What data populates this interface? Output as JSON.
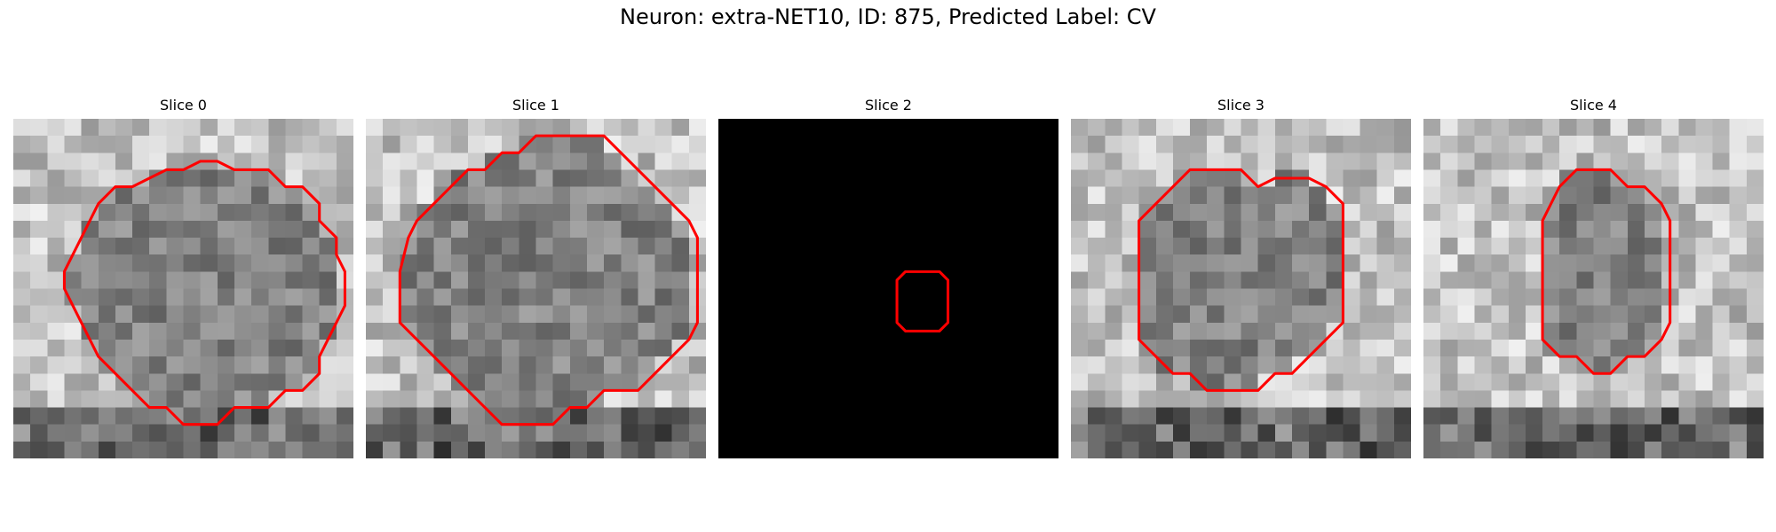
{
  "figure": {
    "title": "Neuron: extra-NET10, ID: 875, Predicted Label: CV"
  },
  "contour_color": "#ff0000",
  "colormap": "gray",
  "slices": [
    {
      "label": "Slice 0",
      "background": "grayscale-noise",
      "contour": [
        [
          13,
          3
        ],
        [
          15,
          3
        ],
        [
          16,
          4
        ],
        [
          17,
          4
        ],
        [
          18,
          5
        ],
        [
          18,
          6
        ],
        [
          19,
          7
        ],
        [
          19,
          8
        ],
        [
          19.5,
          9
        ],
        [
          19.5,
          11
        ],
        [
          19,
          12
        ],
        [
          18.5,
          13
        ],
        [
          18,
          14
        ],
        [
          18,
          15
        ],
        [
          17,
          16
        ],
        [
          16,
          16
        ],
        [
          15,
          17
        ],
        [
          13,
          17
        ],
        [
          12,
          18
        ],
        [
          10,
          18
        ],
        [
          9,
          17
        ],
        [
          8,
          17
        ],
        [
          7,
          16
        ],
        [
          6,
          15
        ],
        [
          5,
          14
        ],
        [
          4.5,
          13
        ],
        [
          4,
          12
        ],
        [
          3.5,
          11
        ],
        [
          3,
          10
        ],
        [
          3,
          9
        ],
        [
          3.5,
          8
        ],
        [
          4,
          7
        ],
        [
          4.5,
          6
        ],
        [
          5,
          5
        ],
        [
          6,
          4
        ],
        [
          7,
          4
        ],
        [
          8,
          3.5
        ],
        [
          9,
          3
        ],
        [
          10,
          3
        ],
        [
          11,
          2.5
        ],
        [
          12,
          2.5
        ]
      ]
    },
    {
      "label": "Slice 1",
      "background": "grayscale-noise",
      "contour": [
        [
          12,
          1
        ],
        [
          14,
          1
        ],
        [
          15,
          2
        ],
        [
          16,
          3
        ],
        [
          17,
          4
        ],
        [
          18,
          5
        ],
        [
          19,
          6
        ],
        [
          19.5,
          7
        ],
        [
          19.5,
          12
        ],
        [
          19,
          13
        ],
        [
          18,
          14
        ],
        [
          17,
          15
        ],
        [
          16,
          16
        ],
        [
          14,
          16
        ],
        [
          13,
          17
        ],
        [
          12,
          17
        ],
        [
          11,
          18
        ],
        [
          8,
          18
        ],
        [
          7,
          17
        ],
        [
          6,
          16
        ],
        [
          5,
          15
        ],
        [
          4,
          14
        ],
        [
          3,
          13
        ],
        [
          2,
          12
        ],
        [
          2,
          9
        ],
        [
          2.5,
          7
        ],
        [
          3,
          6
        ],
        [
          4,
          5
        ],
        [
          5,
          4
        ],
        [
          6,
          3
        ],
        [
          7,
          3
        ],
        [
          8,
          2
        ],
        [
          9,
          2
        ],
        [
          10,
          1
        ],
        [
          11,
          1
        ]
      ]
    },
    {
      "label": "Slice 2",
      "background": "black",
      "contour": [
        [
          11,
          9
        ],
        [
          13,
          9
        ],
        [
          13.5,
          9.5
        ],
        [
          13.5,
          12
        ],
        [
          13,
          12.5
        ],
        [
          11,
          12.5
        ],
        [
          10.5,
          12
        ],
        [
          10.5,
          9.5
        ]
      ]
    },
    {
      "label": "Slice 3",
      "background": "grayscale-noise",
      "contour": [
        [
          8,
          3
        ],
        [
          10,
          3
        ],
        [
          11,
          4
        ],
        [
          12,
          3.5
        ],
        [
          14,
          3.5
        ],
        [
          15,
          4
        ],
        [
          16,
          5
        ],
        [
          16,
          12
        ],
        [
          15,
          13
        ],
        [
          14,
          14
        ],
        [
          13,
          15
        ],
        [
          12,
          15
        ],
        [
          11,
          16
        ],
        [
          8,
          16
        ],
        [
          7,
          15
        ],
        [
          6,
          15
        ],
        [
          5,
          14
        ],
        [
          4,
          13
        ],
        [
          4,
          6
        ],
        [
          5,
          5
        ],
        [
          6,
          4
        ],
        [
          7,
          3
        ]
      ]
    },
    {
      "label": "Slice 4",
      "background": "grayscale-noise",
      "contour": [
        [
          9,
          3
        ],
        [
          11,
          3
        ],
        [
          12,
          4
        ],
        [
          13,
          4
        ],
        [
          14,
          5
        ],
        [
          14.5,
          6
        ],
        [
          14.5,
          12
        ],
        [
          14,
          13
        ],
        [
          13,
          14
        ],
        [
          12,
          14
        ],
        [
          11,
          15
        ],
        [
          10,
          15
        ],
        [
          9,
          14
        ],
        [
          8,
          14
        ],
        [
          7,
          13
        ],
        [
          7,
          6
        ],
        [
          7.5,
          5
        ],
        [
          8,
          4
        ]
      ]
    }
  ]
}
